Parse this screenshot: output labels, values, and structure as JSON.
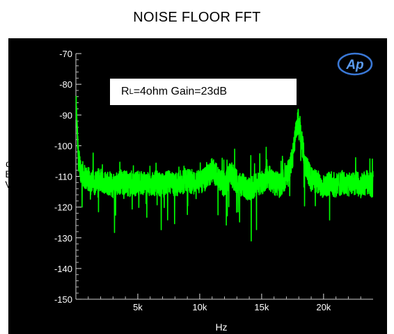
{
  "chart_data": {
    "type": "line",
    "title": "NOISE FLOOR FFT",
    "xlabel": "Hz",
    "ylabel": [
      "d",
      "B",
      "V"
    ],
    "xlim": [
      0,
      24000
    ],
    "ylim": [
      -150,
      -70
    ],
    "xticks": [
      5000,
      10000,
      15000,
      20000
    ],
    "xtick_labels": [
      "5k",
      "10k",
      "15k",
      "20k"
    ],
    "yticks": [
      -70,
      -80,
      -90,
      -100,
      -110,
      -120,
      -130,
      -140,
      -150
    ],
    "ytick_labels": [
      "-70",
      "-80",
      "-90",
      "-100",
      "-110",
      "-120",
      "-130",
      "-140",
      "-150"
    ],
    "annotation": {
      "symbol": "R",
      "subscript": "L",
      "text": "=4ohm Gain=23dB"
    },
    "logo": "Ap",
    "series": [
      {
        "color": "#00ff00",
        "x": [
          20,
          100,
          200,
          400,
          700,
          1000,
          1500,
          2000,
          2500,
          3000,
          3500,
          4000,
          4500,
          5000,
          5500,
          6000,
          6500,
          7000,
          7500,
          8000,
          8500,
          9000,
          9500,
          10000,
          10500,
          11000,
          11500,
          12000,
          12500,
          13000,
          13500,
          14000,
          14500,
          15000,
          15500,
          16000,
          16500,
          17000,
          17500,
          17800,
          18000,
          18200,
          18500,
          19000,
          19500,
          20000,
          20500,
          21000,
          21500,
          22000,
          22500,
          23000,
          23500,
          24000
        ],
        "y": [
          -87,
          -95,
          -104,
          -108,
          -110,
          -111,
          -112,
          -111,
          -112,
          -113,
          -112,
          -112,
          -113,
          -112,
          -112,
          -113,
          -112,
          -113,
          -112,
          -113,
          -112,
          -111,
          -112,
          -112,
          -111,
          -108,
          -110,
          -113,
          -109,
          -112,
          -113,
          -114,
          -113,
          -112,
          -110,
          -112,
          -113,
          -110,
          -104,
          -95,
          -91,
          -97,
          -106,
          -111,
          -112,
          -113,
          -112,
          -113,
          -112,
          -113,
          -112,
          -113,
          -112,
          -113
        ]
      }
    ]
  }
}
